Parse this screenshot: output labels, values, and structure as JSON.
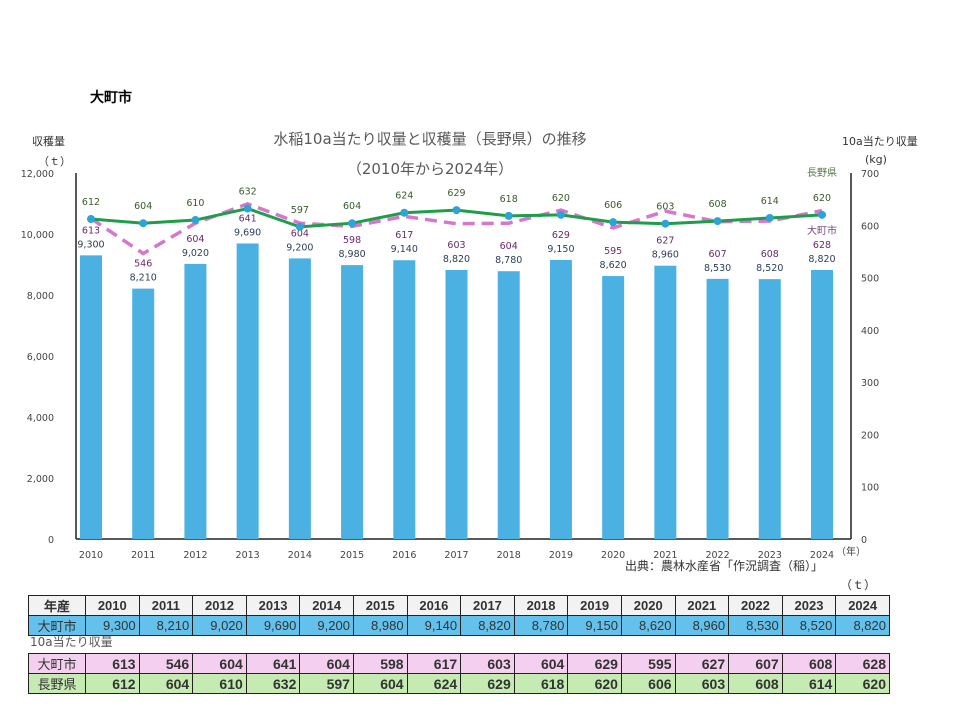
{
  "page_title": "大町市",
  "chart_data": {
    "type": "bar+line",
    "title": "水稲10a当たり収量と収穫量（長野県）の推移",
    "subtitle": "（2010年から2024年）",
    "ylabel_left": "収穫量",
    "ylabel_left_unit": "（ｔ）",
    "ylabel_right": "10a当たり収量",
    "ylabel_right_unit": "(kg)",
    "xlabel_unit": "（年）",
    "ylim_left": [
      0,
      12000
    ],
    "yticks_left": [
      "0",
      "2,000",
      "4,000",
      "6,000",
      "8,000",
      "10,000",
      "12,000"
    ],
    "ylim_right": [
      0,
      700
    ],
    "yticks_right": [
      "0",
      "100",
      "200",
      "300",
      "400",
      "500",
      "600",
      "700"
    ],
    "categories": [
      "2010",
      "2011",
      "2012",
      "2013",
      "2014",
      "2015",
      "2016",
      "2017",
      "2018",
      "2019",
      "2020",
      "2021",
      "2022",
      "2023",
      "2024"
    ],
    "series": [
      {
        "type": "bar",
        "axis": "left",
        "color": "#4ab1e2",
        "values": [
          9300,
          8210,
          9020,
          9690,
          9200,
          8980,
          9140,
          8820,
          8780,
          9150,
          8620,
          8960,
          8530,
          8520,
          8820
        ],
        "labels": [
          "9,300",
          "8,210",
          "9,020",
          "9,690",
          "9,200",
          "8,980",
          "9,140",
          "8,820",
          "8,780",
          "9,150",
          "8,620",
          "8,960",
          "8,530",
          "8,520",
          "8,820"
        ]
      },
      {
        "name": "長野県",
        "type": "line",
        "axis": "right",
        "color": "#1e9e4a",
        "marker_color": "#2ea3d6",
        "values": [
          612,
          604,
          610,
          632,
          597,
          604,
          624,
          629,
          618,
          620,
          606,
          603,
          608,
          614,
          620
        ]
      },
      {
        "name": "大町市",
        "type": "line",
        "style": "dashed",
        "axis": "right",
        "color": "#d577cc",
        "values": [
          613,
          546,
          604,
          641,
          604,
          598,
          617,
          603,
          604,
          629,
          595,
          627,
          607,
          608,
          628
        ]
      }
    ],
    "grid": false
  },
  "source": "出典：農林水産省「作況調査（稲）」",
  "table": {
    "unit": "（ｔ）",
    "header_label": "年産",
    "yield_row_label": "大町市",
    "yield_values": [
      "9,300",
      "8,210",
      "9,020",
      "9,690",
      "9,200",
      "8,980",
      "9,140",
      "8,820",
      "8,780",
      "9,150",
      "8,620",
      "8,960",
      "8,530",
      "8,520",
      "8,820"
    ],
    "per10a_caption": "10a当たり収量",
    "omachi_label": "大町市",
    "omachi_values": [
      "613",
      "546",
      "604",
      "641",
      "604",
      "598",
      "617",
      "603",
      "604",
      "629",
      "595",
      "627",
      "607",
      "608",
      "628"
    ],
    "nagano_label": "長野県",
    "nagano_values": [
      "612",
      "604",
      "610",
      "632",
      "597",
      "604",
      "624",
      "629",
      "618",
      "620",
      "606",
      "603",
      "608",
      "614",
      "620"
    ],
    "colors": {
      "header": "#f2f2f2",
      "yield": "#63c1ec",
      "omachi": "#f4cff0",
      "nagano": "#c5ebb2"
    }
  }
}
